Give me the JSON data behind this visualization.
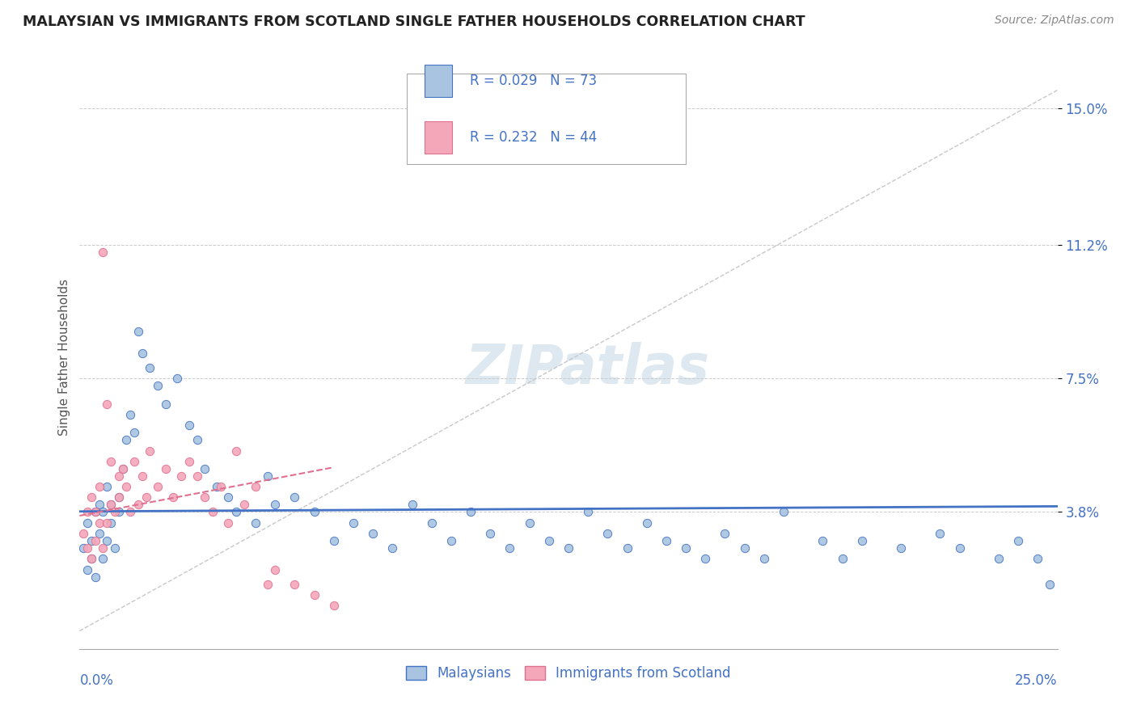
{
  "title": "MALAYSIAN VS IMMIGRANTS FROM SCOTLAND SINGLE FATHER HOUSEHOLDS CORRELATION CHART",
  "source": "Source: ZipAtlas.com",
  "ylabel": "Single Father Households",
  "xlim": [
    0.0,
    0.25
  ],
  "ylim": [
    0.0,
    0.162
  ],
  "ytick_vals": [
    0.038,
    0.075,
    0.112,
    0.15
  ],
  "ytick_labels": [
    "3.8%",
    "7.5%",
    "11.2%",
    "15.0%"
  ],
  "color_malaysian_fill": "#a8c4e0",
  "color_malaysian_edge": "#4472c4",
  "color_scotland_fill": "#f4a7b9",
  "color_scotland_edge": "#e07090",
  "color_trendline_mal": "#4472c4",
  "color_trendline_scot": "#e07090",
  "color_diag": "#c8c8c8",
  "color_grid": "#cccccc",
  "watermark_color": "#dde8f0",
  "legend_r1": "R = 0.029",
  "legend_n1": "N = 73",
  "legend_r2": "R = 0.232",
  "legend_n2": "N = 44"
}
